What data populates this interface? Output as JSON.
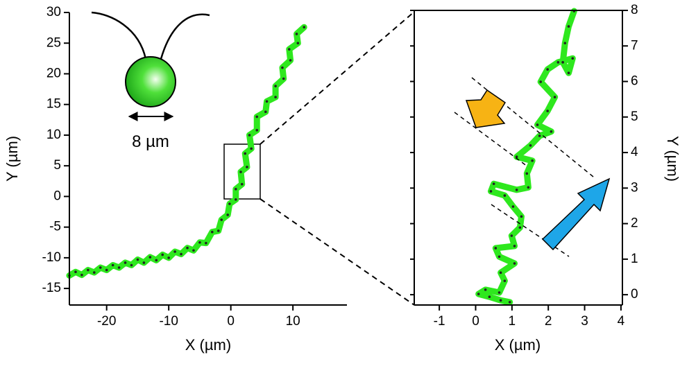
{
  "chart_data": [
    {
      "type": "line",
      "x_label": "X (µm)",
      "y_label": "Y (µm)",
      "annotation": "8 µm",
      "xlim": [
        -26,
        18.7
      ],
      "ylim": [
        -17.7,
        30
      ],
      "xticks": [
        -20,
        -10,
        0,
        10
      ],
      "yticks": [
        -15,
        -10,
        -5,
        0,
        5,
        10,
        15,
        20,
        25,
        30
      ],
      "y_axis_side": "left",
      "frame": false,
      "series": [
        {
          "color": "#2ee81e",
          "marker_color": "#222222",
          "x": [
            -26,
            -25,
            -24,
            -23,
            -22,
            -21,
            -20,
            -19,
            -18,
            -17,
            -16,
            -15,
            -14,
            -13,
            -12,
            -11,
            -10,
            -9,
            -8,
            -7,
            -6,
            -5,
            -4,
            -3,
            -2,
            -1.5,
            -0.5,
            -0.2,
            0.8,
            0.8,
            1.8,
            1.6,
            2.6,
            2.3,
            3.3,
            3.0,
            4.2,
            4.2,
            5.6,
            5.8,
            7.2,
            7.2,
            8.5,
            8.3,
            9.6,
            9.4,
            10.8,
            10.6,
            11.8
          ],
          "values": [
            -12.9,
            -12.3,
            -12.8,
            -12.0,
            -12.4,
            -11.6,
            -12.0,
            -11.2,
            -11.6,
            -10.8,
            -11.2,
            -10.3,
            -10.8,
            -9.9,
            -10.4,
            -9.5,
            -10.0,
            -9.0,
            -9.4,
            -8.4,
            -8.8,
            -7.5,
            -7.6,
            -5.8,
            -5.6,
            -3.8,
            -3.0,
            -1.2,
            -0.5,
            1.2,
            2.0,
            4.0,
            4.8,
            7.0,
            7.8,
            10.0,
            10.8,
            13.0,
            13.8,
            15.5,
            16.2,
            18.0,
            19.2,
            21.0,
            22.2,
            24.0,
            25.0,
            26.5,
            27.6
          ]
        }
      ]
    },
    {
      "type": "line",
      "x_label": "X (µm)",
      "y_label": "Y (µm)",
      "xlim": [
        -1.69,
        4.04
      ],
      "ylim": [
        -0.29,
        8
      ],
      "xticks": [
        -1,
        0,
        1,
        2,
        3,
        4
      ],
      "yticks": [
        0,
        1,
        2,
        3,
        4,
        5,
        6,
        7,
        8
      ],
      "y_axis_side": "right",
      "frame": true,
      "series": [
        {
          "color": "#2ee81e",
          "marker_color": "#222222",
          "x": [
            0.94,
            0.69,
            0.38,
            0.08,
            0.27,
            0.65,
            0.8,
            0.69,
            1.07,
            0.65,
            0.55,
            1.07,
            0.99,
            1.22,
            1.26,
            1.03,
            0.8,
            0.42,
            0.5,
            1.13,
            1.45,
            1.41,
            1.56,
            1.13,
            1.51,
            1.76,
            2.08,
            1.7,
            1.98,
            2.18,
            1.79,
            1.98,
            2.27,
            2.67,
            2.56,
            2.4,
            2.46,
            2.56,
            2.71
          ],
          "values": [
            -0.21,
            -0.16,
            -0.06,
            0.02,
            0.14,
            0.06,
            0.39,
            0.62,
            0.88,
            1.07,
            1.31,
            1.37,
            1.66,
            1.89,
            2.2,
            2.48,
            2.79,
            2.91,
            3.12,
            2.95,
            3.02,
            3.41,
            3.77,
            3.88,
            4.2,
            4.47,
            4.59,
            4.78,
            5.17,
            5.56,
            5.99,
            6.34,
            6.54,
            6.65,
            6.24,
            6.54,
            7.08,
            7.55,
            7.98
          ]
        }
      ]
    }
  ]
}
